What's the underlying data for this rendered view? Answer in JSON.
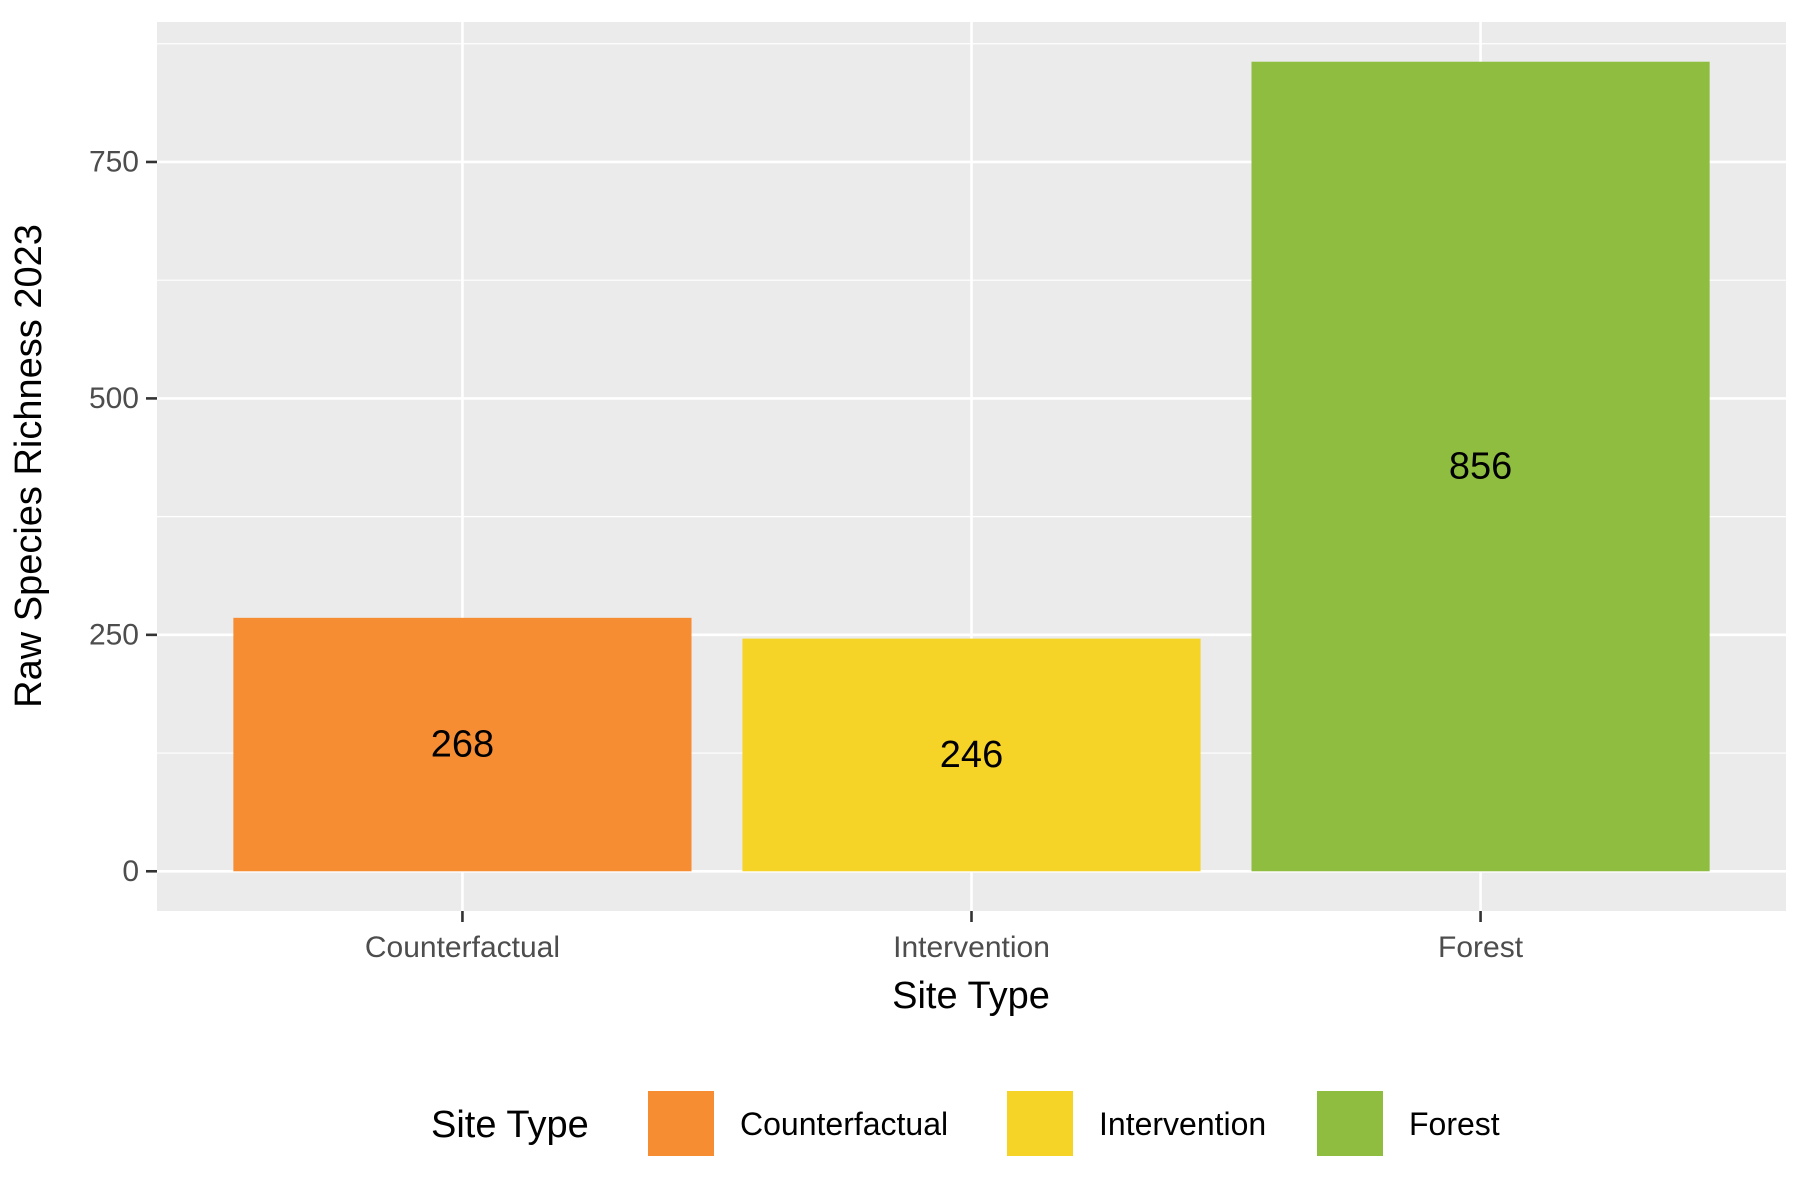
{
  "chart_data": {
    "type": "bar",
    "categories": [
      "Counterfactual",
      "Intervention",
      "Forest"
    ],
    "values": [
      268,
      246,
      856
    ],
    "data_labels": [
      "268",
      "246",
      "856"
    ],
    "colors": [
      "#F68D33",
      "#F5D327",
      "#8FBD3F"
    ],
    "xlabel": "Site Type",
    "ylabel": "Raw Species Richness 2023",
    "y_ticks": [
      0,
      250,
      500,
      750
    ],
    "y_tick_labels": [
      "0",
      "250",
      "500",
      "750"
    ],
    "ylim": [
      -42,
      898
    ],
    "grid": true,
    "panel_background": "#EBEBEB",
    "grid_color": "#FFFFFF",
    "legend": {
      "title": "Site Type",
      "position": "bottom",
      "entries": [
        "Counterfactual",
        "Intervention",
        "Forest"
      ]
    }
  }
}
